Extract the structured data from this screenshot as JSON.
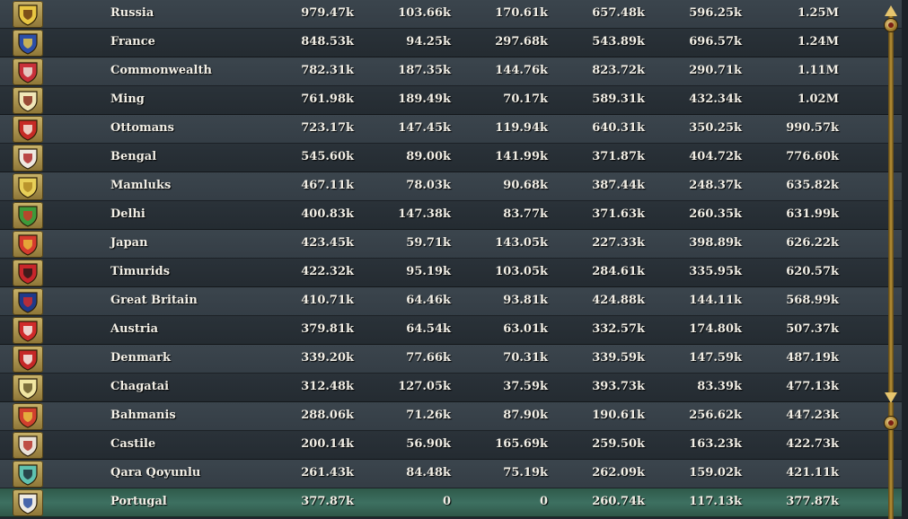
{
  "ledger": {
    "rows": [
      {
        "name": "Russia",
        "values": [
          "979.47k",
          "103.66k",
          "170.61k",
          "657.48k",
          "596.25k",
          "1.25M"
        ],
        "icon": "russia-shield-icon",
        "colors": [
          "#e8c642",
          "#6b3b12"
        ]
      },
      {
        "name": "France",
        "values": [
          "848.53k",
          "94.25k",
          "297.68k",
          "543.89k",
          "696.57k",
          "1.24M"
        ],
        "icon": "france-shield-icon",
        "colors": [
          "#2c4ea8",
          "#e0c24a"
        ]
      },
      {
        "name": "Commonwealth",
        "values": [
          "782.31k",
          "187.35k",
          "144.76k",
          "823.72k",
          "290.71k",
          "1.11M"
        ],
        "icon": "commonwealth-shield-icon",
        "colors": [
          "#c8303a",
          "#e9e2d8"
        ]
      },
      {
        "name": "Ming",
        "values": [
          "761.98k",
          "189.49k",
          "70.17k",
          "589.31k",
          "432.34k",
          "1.02M"
        ],
        "icon": "ming-shield-icon",
        "colors": [
          "#f0e6b8",
          "#8a2f1f"
        ]
      },
      {
        "name": "Ottomans",
        "values": [
          "723.17k",
          "147.45k",
          "119.94k",
          "640.31k",
          "350.25k",
          "990.57k"
        ],
        "icon": "ottomans-shield-icon",
        "colors": [
          "#c62b26",
          "#f2e9dd"
        ]
      },
      {
        "name": "Bengal",
        "values": [
          "545.60k",
          "89.00k",
          "141.99k",
          "371.87k",
          "404.72k",
          "776.60k"
        ],
        "icon": "bengal-shield-icon",
        "colors": [
          "#eee8e0",
          "#b02a2a"
        ]
      },
      {
        "name": "Mamluks",
        "values": [
          "467.11k",
          "78.03k",
          "90.68k",
          "387.44k",
          "248.37k",
          "635.82k"
        ],
        "icon": "mamluks-shield-icon",
        "colors": [
          "#e8cf58",
          "#b18b25"
        ]
      },
      {
        "name": "Delhi",
        "values": [
          "400.83k",
          "147.38k",
          "83.77k",
          "371.63k",
          "260.35k",
          "631.99k"
        ],
        "icon": "delhi-shield-icon",
        "colors": [
          "#3e9a3a",
          "#c93a2a"
        ]
      },
      {
        "name": "Japan",
        "values": [
          "423.45k",
          "59.71k",
          "143.05k",
          "227.33k",
          "398.89k",
          "626.22k"
        ],
        "icon": "japan-shield-icon",
        "colors": [
          "#d53a2e",
          "#e8b93a"
        ]
      },
      {
        "name": "Timurids",
        "values": [
          "422.32k",
          "95.19k",
          "103.05k",
          "284.61k",
          "335.95k",
          "620.57k"
        ],
        "icon": "timurids-shield-icon",
        "colors": [
          "#c8262b",
          "#2a1a1a"
        ]
      },
      {
        "name": "Great Britain",
        "values": [
          "410.71k",
          "64.46k",
          "93.81k",
          "424.88k",
          "144.11k",
          "568.99k"
        ],
        "icon": "great-britain-shield-icon",
        "colors": [
          "#1f3a8a",
          "#d02b2b"
        ]
      },
      {
        "name": "Austria",
        "values": [
          "379.81k",
          "64.54k",
          "63.01k",
          "332.57k",
          "174.80k",
          "507.37k"
        ],
        "icon": "austria-shield-icon",
        "colors": [
          "#d02b2b",
          "#f3f0ea"
        ]
      },
      {
        "name": "Denmark",
        "values": [
          "339.20k",
          "77.66k",
          "70.31k",
          "339.59k",
          "147.59k",
          "487.19k"
        ],
        "icon": "denmark-shield-icon",
        "colors": [
          "#c62828",
          "#f3f0ea"
        ]
      },
      {
        "name": "Chagatai",
        "values": [
          "312.48k",
          "127.05k",
          "37.59k",
          "393.73k",
          "83.39k",
          "477.13k"
        ],
        "icon": "chagatai-shield-icon",
        "colors": [
          "#f1e6a2",
          "#6a5a2a"
        ]
      },
      {
        "name": "Bahmanis",
        "values": [
          "288.06k",
          "71.26k",
          "87.90k",
          "190.61k",
          "256.62k",
          "447.23k"
        ],
        "icon": "bahmanis-shield-icon",
        "colors": [
          "#d1402e",
          "#e8c040"
        ]
      },
      {
        "name": "Castile",
        "values": [
          "200.14k",
          "56.90k",
          "165.69k",
          "259.50k",
          "163.23k",
          "422.73k"
        ],
        "icon": "castile-shield-icon",
        "colors": [
          "#e9e2d8",
          "#b6342c"
        ]
      },
      {
        "name": "Qara Qoyunlu",
        "values": [
          "261.43k",
          "84.48k",
          "75.19k",
          "262.09k",
          "159.02k",
          "421.11k"
        ],
        "icon": "qara-qoyunlu-shield-icon",
        "colors": [
          "#5fc2b0",
          "#1f2f3a"
        ]
      },
      {
        "name": "Portugal",
        "values": [
          "377.87k",
          "0",
          "0",
          "260.74k",
          "117.13k",
          "377.87k"
        ],
        "icon": "portugal-shield-icon",
        "colors": [
          "#eeeae2",
          "#2a4fa0"
        ],
        "highlighted": true
      }
    ]
  },
  "scrollbar": {
    "up_icon": "scroll-up-arrow-icon",
    "down_icon": "scroll-down-arrow-icon",
    "accent": "#b89136"
  }
}
